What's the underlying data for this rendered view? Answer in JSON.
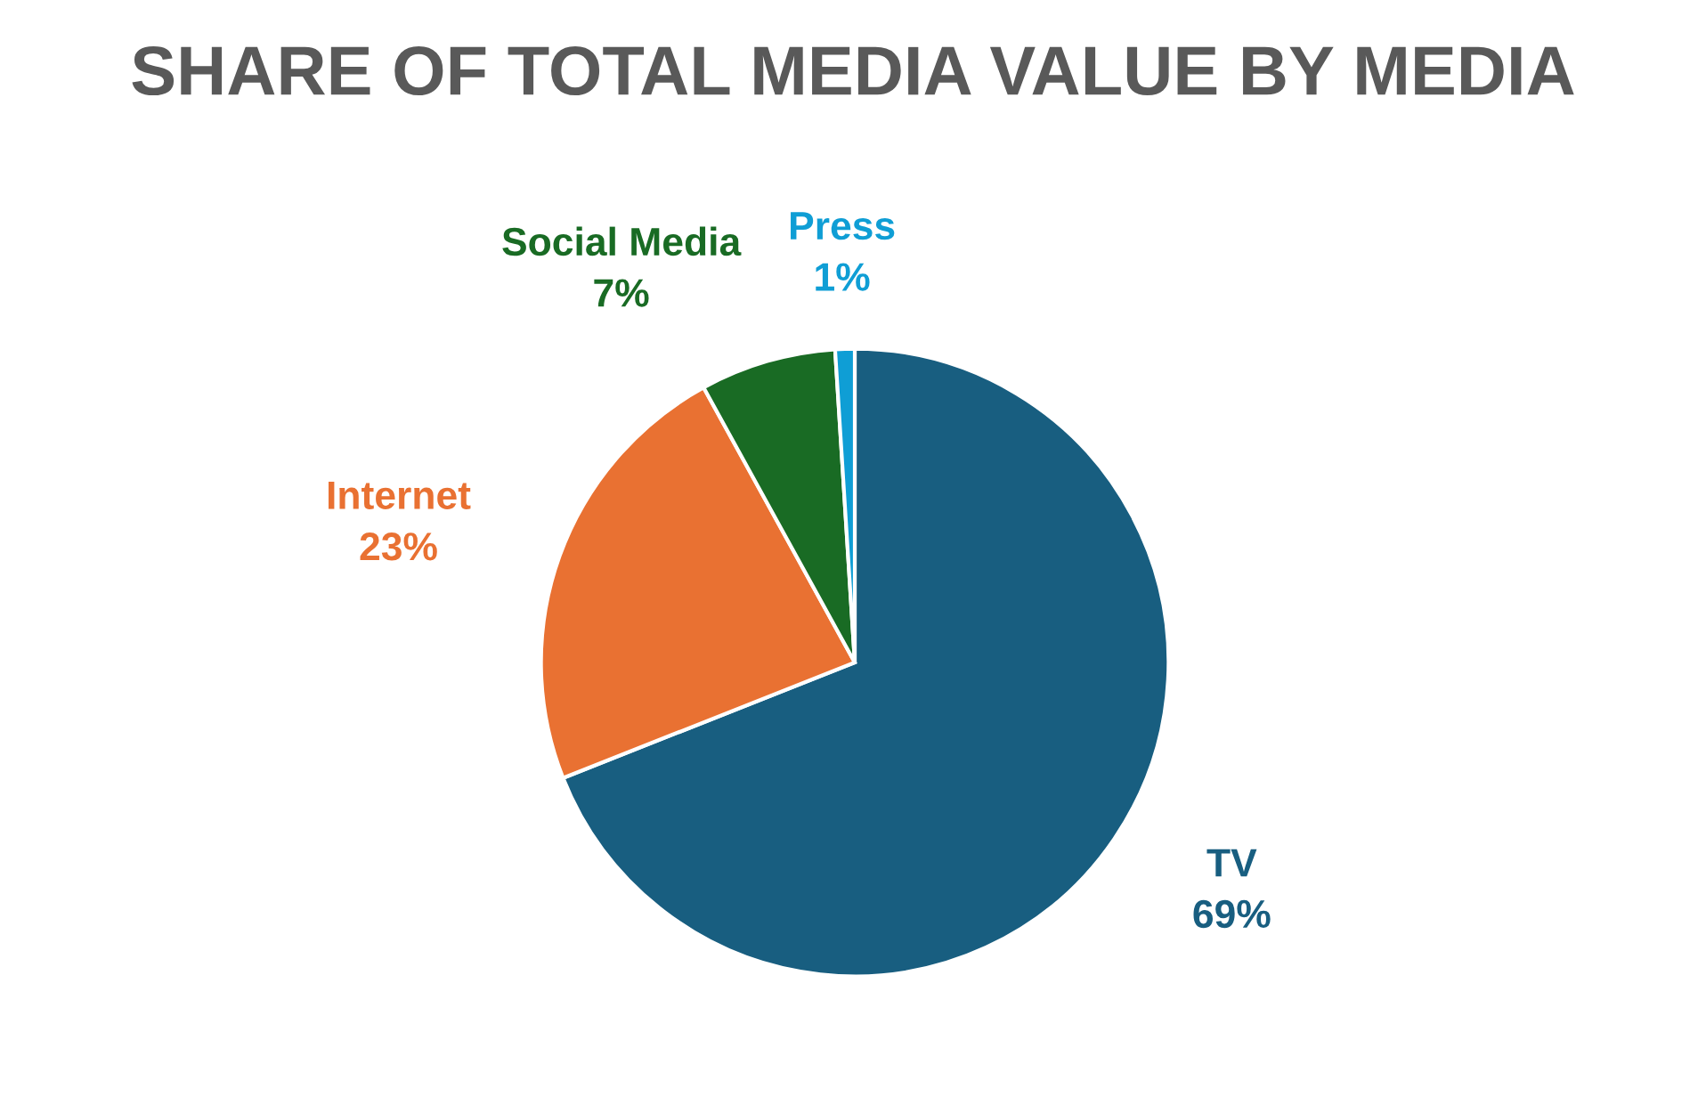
{
  "chart_data": {
    "type": "pie",
    "title": "SHARE OF TOTAL MEDIA VALUE BY MEDIA",
    "categories": [
      "TV",
      "Internet",
      "Social Media",
      "Press"
    ],
    "values": [
      69,
      23,
      7,
      1
    ],
    "colors": [
      "#185e80",
      "#e97132",
      "#196b24",
      "#0f9ed5"
    ],
    "value_labels": [
      "69%",
      "23%",
      "7%",
      "1%"
    ],
    "legend": false
  }
}
